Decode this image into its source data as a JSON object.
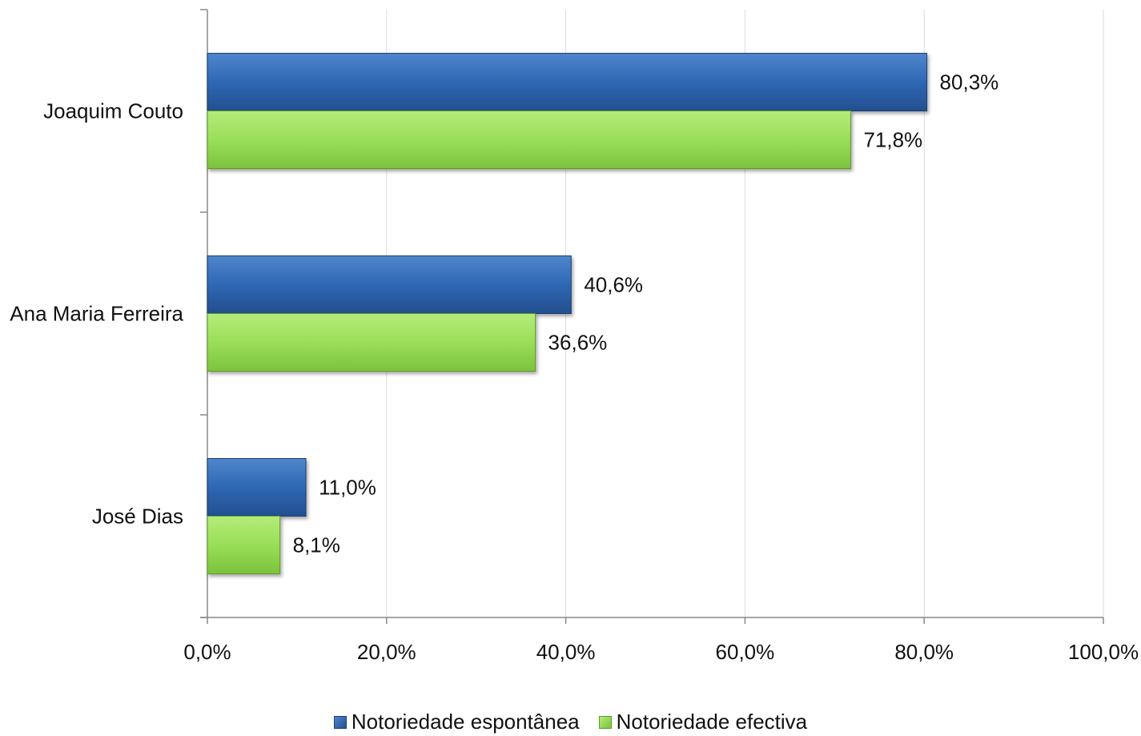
{
  "chart_data": {
    "type": "bar",
    "orientation": "horizontal",
    "categories": [
      "Joaquim Couto",
      "Ana Maria Ferreira",
      "José Dias"
    ],
    "series": [
      {
        "name": "Notoriedade espontânea",
        "color": "#2f67b4",
        "values": [
          80.3,
          40.6,
          11.0
        ],
        "labels": [
          "80,3%",
          "40,6%",
          "11,0%"
        ]
      },
      {
        "name": "Notoriedade efectiva",
        "color": "#9ade58",
        "values": [
          71.8,
          36.6,
          8.1
        ],
        "labels": [
          "71,8%",
          "36,6%",
          "8,1%"
        ]
      }
    ],
    "xlim": [
      0,
      100
    ],
    "xticks": [
      "0,0%",
      "20,0%",
      "40,0%",
      "60,0%",
      "80,0%",
      "100,0%"
    ],
    "xlabel": "",
    "ylabel": "",
    "title": "",
    "grid": true,
    "legend_position": "bottom"
  }
}
